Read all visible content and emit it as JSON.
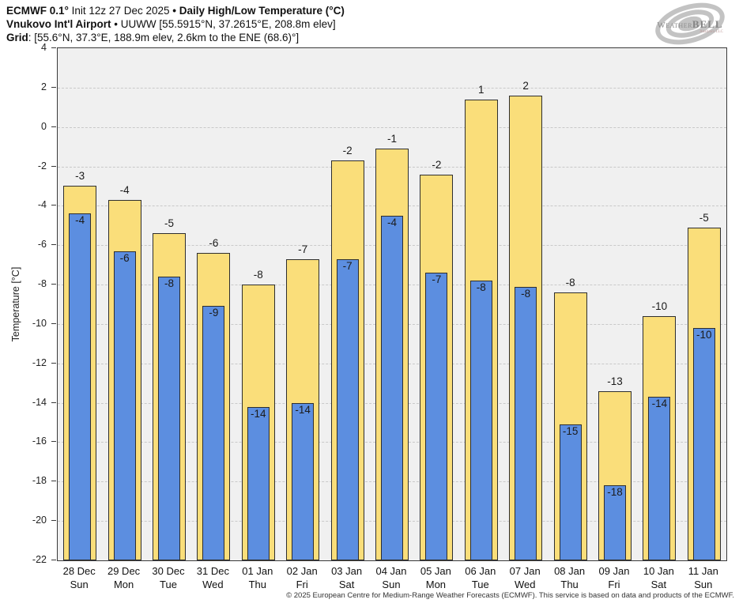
{
  "header": {
    "line1": {
      "model": "ECMWF 0.1°",
      "init": " Init 12z 27 Dec 2025 ",
      "product": "• Daily High/Low Temperature (°C)"
    },
    "line2": {
      "station": "Vnukovo Int'l Airport",
      "details": " • UUWW [55.5915°N, 37.2615°E, 208.8m elev]"
    },
    "line3": {
      "label": "Grid",
      "details": ": [55.6°N, 37.3°E, 188.9m elev, 2.6km to the ENE (68.6)°]"
    }
  },
  "logo": {
    "word_main_1": "Weather",
    "word_main_2": "BELL",
    "subtitle": "Analytics LLC",
    "swirl_color": "#b4b4b4"
  },
  "chart_data": {
    "type": "bar",
    "title": "Daily High/Low Temperature (°C)",
    "subtitle": "ECMWF 0.1 Init 12z 27 Dec 2025 — Vnukovo Int'l Airport (UUWW)",
    "xlabel": "",
    "ylabel": "Temperature [°C]",
    "ylim": [
      -22,
      4
    ],
    "ytick_step": 2,
    "yticks": [
      4,
      2,
      0,
      -2,
      -4,
      -6,
      -8,
      -10,
      -12,
      -14,
      -16,
      -18,
      -20,
      -22
    ],
    "grid": "horizontal-dashed",
    "plot_background": "#f0f0f0",
    "bar_outline": "#2e2e2e",
    "legend_position": "none",
    "categories": {
      "dates": [
        "28 Dec",
        "29 Dec",
        "30 Dec",
        "31 Dec",
        "01 Jan",
        "02 Jan",
        "03 Jan",
        "04 Jan",
        "05 Jan",
        "06 Jan",
        "07 Jan",
        "08 Jan",
        "09 Jan",
        "10 Jan",
        "11 Jan"
      ],
      "days": [
        "Sun",
        "Mon",
        "Tue",
        "Wed",
        "Thu",
        "Fri",
        "Sat",
        "Sun",
        "Mon",
        "Tue",
        "Wed",
        "Thu",
        "Fri",
        "Sat",
        "Sun"
      ]
    },
    "series": [
      {
        "name": "Daily High",
        "color": "#fade7a",
        "values": [
          -3.0,
          -3.7,
          -5.4,
          -6.4,
          -8.0,
          -6.7,
          -1.7,
          -1.1,
          -2.4,
          1.4,
          1.6,
          -8.4,
          -13.4,
          -9.6,
          -5.1
        ],
        "labels": [
          "-3",
          "-4",
          "-5",
          "-6",
          "-8",
          "-7",
          "-2",
          "-1",
          "-2",
          "1",
          "2",
          "-8",
          "-13",
          "-10",
          "-5"
        ]
      },
      {
        "name": "Daily Low",
        "color": "#5c8ee0",
        "values": [
          -4.4,
          -6.3,
          -7.6,
          -9.1,
          -14.2,
          -14.0,
          -6.7,
          -4.5,
          -7.4,
          -7.8,
          -8.1,
          -15.1,
          -18.2,
          -13.7,
          -10.2
        ],
        "labels": [
          "-4",
          "-6",
          "-8",
          "-9",
          "-14",
          "-14",
          "-7",
          "-4",
          "-7",
          "-8",
          "-8",
          "-15",
          "-18",
          "-14",
          "-10"
        ]
      }
    ]
  },
  "footer": {
    "copyright": "© 2025 European Centre for Medium-Range Weather Forecasts (ECMWF). This service is based on data and products of the ECMWF."
  }
}
